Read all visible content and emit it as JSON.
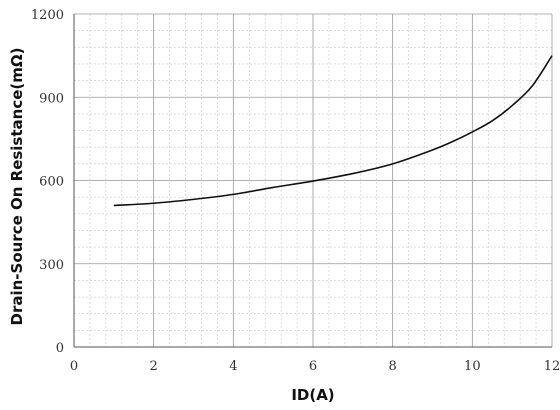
{
  "chart_data": {
    "type": "line",
    "xlabel": "ID(A)",
    "ylabel": "Drain-Source On Resistance(mΩ)",
    "xlim": [
      0,
      12
    ],
    "ylim": [
      0,
      1200
    ],
    "x_ticks": [
      0,
      2,
      4,
      6,
      8,
      10,
      12
    ],
    "y_ticks": [
      0,
      300,
      600,
      900,
      1200
    ],
    "x_minor_step": 0.4,
    "y_minor_step": 60,
    "grid": true,
    "series": [
      {
        "color": "#111111",
        "x": [
          1,
          2,
          3,
          4,
          5,
          6,
          7,
          8,
          9,
          9.5,
          10,
          10.5,
          11,
          11.5,
          12
        ],
        "y": [
          510,
          518,
          532,
          550,
          575,
          598,
          625,
          660,
          710,
          740,
          775,
          815,
          870,
          940,
          1050
        ]
      }
    ]
  }
}
